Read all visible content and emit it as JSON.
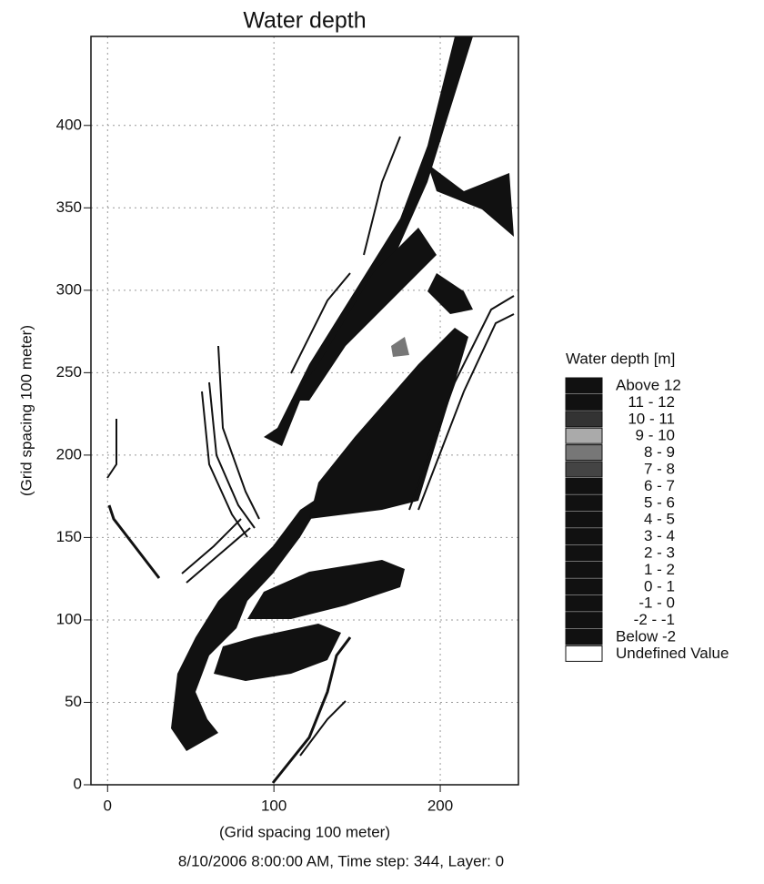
{
  "chart_data": {
    "type": "contour",
    "title": "Water depth",
    "x_label": "(Grid spacing 100 meter)",
    "y_label": "(Grid spacing 100 meter)",
    "footer": "8/10/2006 8:00:00 AM, Time step: 344, Layer: 0",
    "xlim": [
      -10,
      247
    ],
    "ylim": [
      0,
      454
    ],
    "xticks": [
      0,
      100,
      200
    ],
    "yticks": [
      0,
      50,
      100,
      150,
      200,
      250,
      300,
      350,
      400
    ],
    "grid": true,
    "legend": {
      "title": "Water depth [m]",
      "position": "right",
      "items": [
        {
          "label": "Above 12",
          "color": "#111111"
        },
        {
          "label": "11 - 12",
          "color": "#111111"
        },
        {
          "label": "10 - 11",
          "color": "#333333"
        },
        {
          "label": "9 - 10",
          "color": "#aaaaaa"
        },
        {
          "label": "8 -  9",
          "color": "#777777"
        },
        {
          "label": "7 -  8",
          "color": "#444444"
        },
        {
          "label": "6 -  7",
          "color": "#111111"
        },
        {
          "label": "5 -  6",
          "color": "#111111"
        },
        {
          "label": "4 -  5",
          "color": "#111111"
        },
        {
          "label": "3 -  4",
          "color": "#111111"
        },
        {
          "label": "2 -  3",
          "color": "#111111"
        },
        {
          "label": "1 -  2",
          "color": "#111111"
        },
        {
          "label": "0 -  1",
          "color": "#111111"
        },
        {
          "label": "-1 -  0",
          "color": "#111111"
        },
        {
          "label": "-2 - -1",
          "color": "#111111"
        },
        {
          "label": "Below  -2",
          "color": "#111111"
        },
        {
          "label": "Undefined Value",
          "color": "#ffffff"
        }
      ]
    }
  }
}
